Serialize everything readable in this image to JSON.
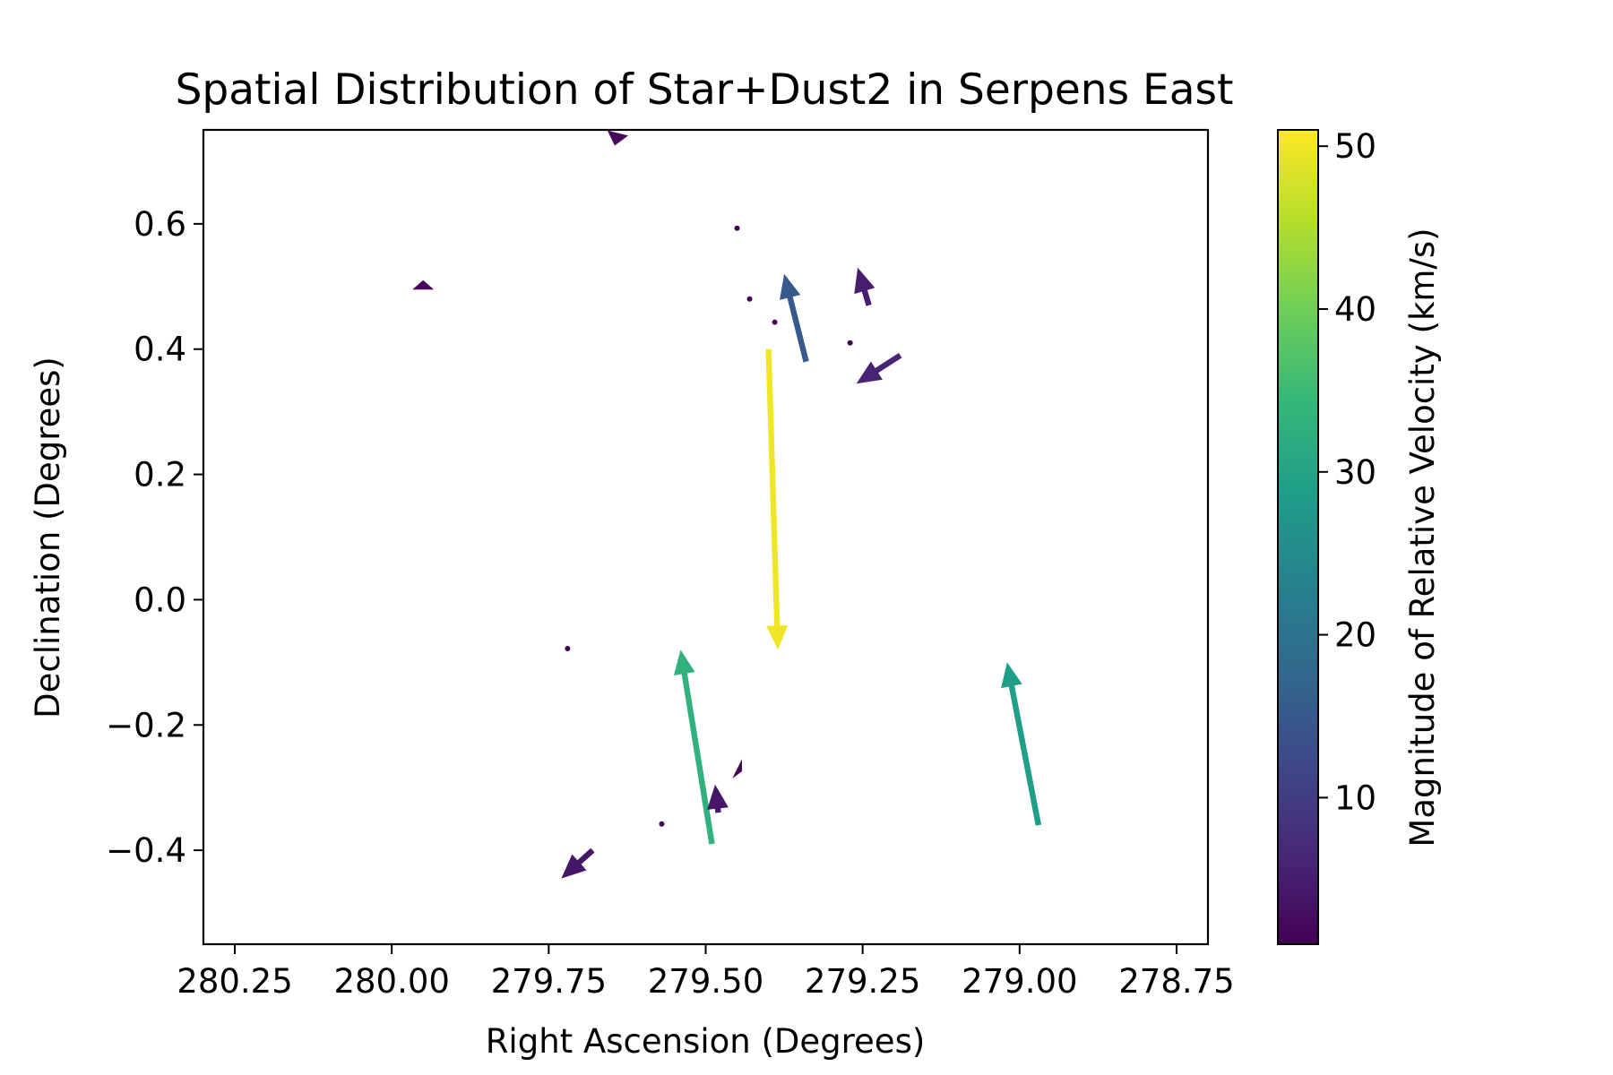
{
  "chart_data": {
    "type": "quiver",
    "title": "Spatial Distribution of Star+Dust2 in Serpens East",
    "xlabel": "Right Ascension (Degrees)",
    "ylabel": "Declination (Degrees)",
    "colorbar_label": "Magnitude of Relative Velocity (km/s)",
    "xlim": [
      280.3,
      278.7
    ],
    "ylim": [
      -0.55,
      0.75
    ],
    "x_inverted": true,
    "xticks": [
      280.25,
      280.0,
      279.75,
      279.5,
      279.25,
      279.0,
      278.75
    ],
    "xtick_labels": [
      "280.25",
      "280.00",
      "279.75",
      "279.50",
      "279.25",
      "279.00",
      "278.75"
    ],
    "yticks": [
      0.6,
      0.4,
      0.2,
      0.0,
      -0.2,
      -0.4
    ],
    "ytick_labels": [
      "0.6",
      "0.4",
      "0.2",
      "0.0",
      "−0.2",
      "−0.4"
    ],
    "colorbar_range": [
      1,
      51
    ],
    "colorbar_ticks": [
      10,
      20,
      30,
      40,
      50
    ],
    "colorbar_tick_labels": [
      "10",
      "20",
      "30",
      "40",
      "50"
    ],
    "colormap": "viridis",
    "colormap_stops": [
      "#440154",
      "#482878",
      "#3e4989",
      "#31688e",
      "#26828e",
      "#1f9e89",
      "#35b779",
      "#6ece58",
      "#b5de2b",
      "#fde725"
    ],
    "grid": false,
    "vectors": [
      {
        "x": 279.4,
        "y": 0.4,
        "dx": -0.015,
        "dy": -0.48,
        "magnitude": 50
      },
      {
        "x": 279.49,
        "y": -0.39,
        "dx": 0.05,
        "dy": 0.31,
        "magnitude": 33
      },
      {
        "x": 278.97,
        "y": -0.36,
        "dx": 0.05,
        "dy": 0.26,
        "magnitude": 29
      },
      {
        "x": 279.34,
        "y": 0.38,
        "dx": 0.035,
        "dy": 0.14,
        "magnitude": 15
      },
      {
        "x": 279.19,
        "y": 0.39,
        "dx": 0.07,
        "dy": -0.045,
        "magnitude": 6
      },
      {
        "x": 279.24,
        "y": 0.47,
        "dx": 0.018,
        "dy": 0.06,
        "magnitude": 5
      },
      {
        "x": 279.68,
        "y": -0.4,
        "dx": 0.05,
        "dy": -0.045,
        "magnitude": 4
      },
      {
        "x": 279.48,
        "y": -0.34,
        "dx": 0.005,
        "dy": 0.045,
        "magnitude": 4
      },
      {
        "x": 279.64,
        "y": 0.745,
        "dx": 0.005,
        "dy": -0.02,
        "magnitude": 2
      },
      {
        "x": 279.95,
        "y": 0.495,
        "dx": 0.0,
        "dy": 0.015,
        "magnitude": 2
      },
      {
        "x": 279.45,
        "y": -0.27,
        "dx": -0.008,
        "dy": -0.004,
        "magnitude": 1.5
      }
    ],
    "points": [
      {
        "x": 279.45,
        "y": 0.593
      },
      {
        "x": 279.43,
        "y": 0.48
      },
      {
        "x": 279.39,
        "y": 0.443
      },
      {
        "x": 279.27,
        "y": 0.41
      },
      {
        "x": 279.72,
        "y": -0.078
      },
      {
        "x": 279.57,
        "y": -0.358
      }
    ]
  }
}
